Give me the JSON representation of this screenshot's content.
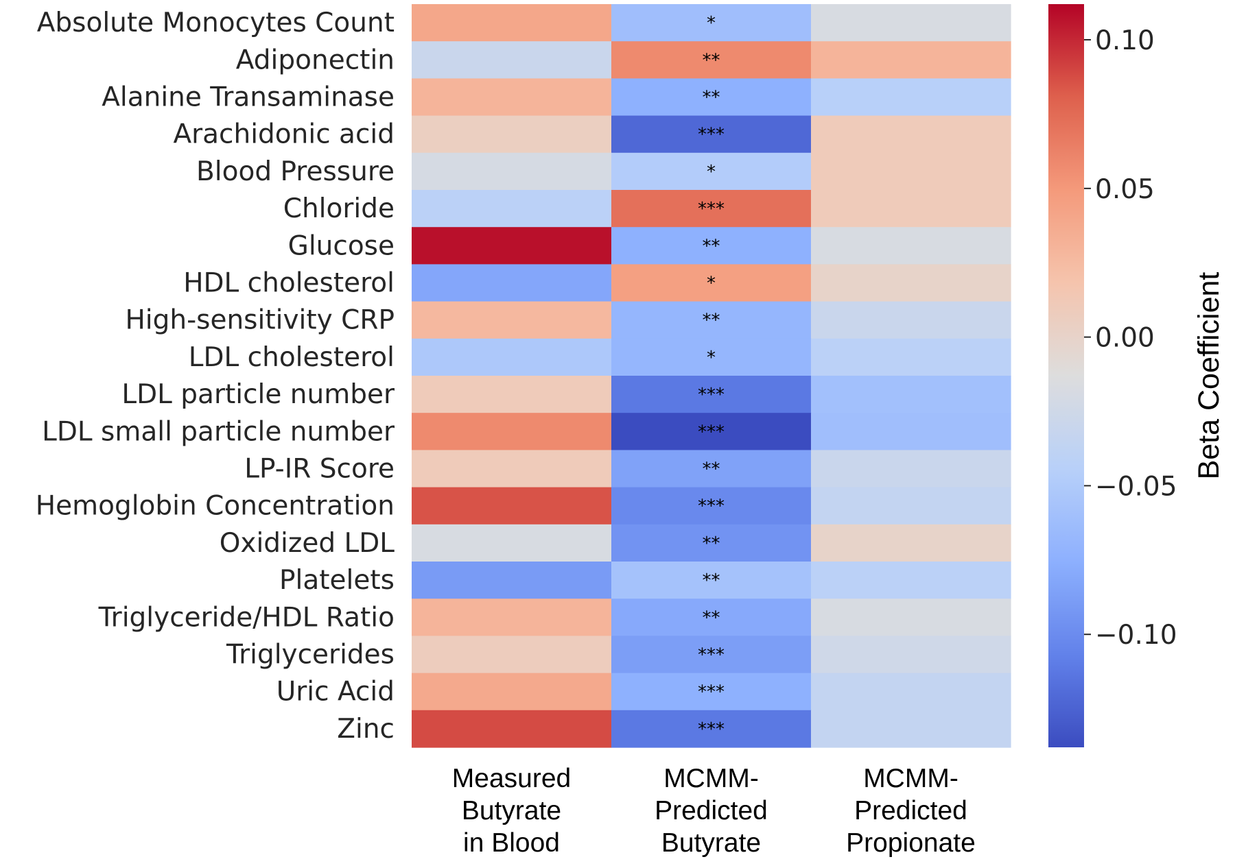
{
  "chart_data": {
    "type": "heatmap",
    "rows": [
      "Absolute Monocytes Count",
      "Adiponectin",
      "Alanine Transaminase",
      "Arachidonic acid",
      "Blood Pressure",
      "Chloride",
      "Glucose",
      "HDL cholesterol",
      "High-sensitivity CRP",
      "LDL cholesterol",
      "LDL particle number",
      "LDL small particle number",
      "LP-IR Score",
      "Hemoglobin Concentration",
      "Oxidized LDL",
      "Platelets",
      "Triglyceride/HDL Ratio",
      "Triglycerides",
      "Uric Acid",
      "Zinc"
    ],
    "columns": [
      [
        "Measured",
        "Butyrate",
        "in Blood"
      ],
      [
        "MCMM-",
        "Predicted",
        "Butyrate"
      ],
      [
        "MCMM-",
        "Predicted",
        "Propionate"
      ]
    ],
    "values": [
      [
        0.04,
        -0.062,
        -0.018
      ],
      [
        -0.03,
        0.058,
        0.03
      ],
      [
        0.03,
        -0.075,
        -0.044
      ],
      [
        0.005,
        -0.122,
        0.01
      ],
      [
        -0.02,
        -0.048,
        0.01
      ],
      [
        -0.042,
        0.072,
        0.01
      ],
      [
        0.108,
        -0.075,
        -0.018
      ],
      [
        -0.082,
        0.045,
        0.0
      ],
      [
        0.027,
        -0.07,
        -0.03
      ],
      [
        -0.052,
        -0.07,
        -0.042
      ],
      [
        0.01,
        -0.112,
        -0.06
      ],
      [
        0.058,
        -0.138,
        -0.062
      ],
      [
        0.01,
        -0.085,
        -0.03
      ],
      [
        0.085,
        -0.102,
        -0.035
      ],
      [
        -0.018,
        -0.095,
        0.0
      ],
      [
        -0.09,
        -0.058,
        -0.042
      ],
      [
        0.03,
        -0.08,
        -0.018
      ],
      [
        0.008,
        -0.088,
        -0.025
      ],
      [
        0.038,
        -0.075,
        -0.035
      ],
      [
        0.088,
        -0.112,
        -0.035
      ]
    ],
    "annotations": [
      [
        "",
        "*",
        ""
      ],
      [
        "",
        "**",
        ""
      ],
      [
        "",
        "**",
        ""
      ],
      [
        "",
        "***",
        ""
      ],
      [
        "",
        "*",
        ""
      ],
      [
        "",
        "***",
        ""
      ],
      [
        "",
        "**",
        ""
      ],
      [
        "",
        "*",
        ""
      ],
      [
        "",
        "**",
        ""
      ],
      [
        "",
        "*",
        ""
      ],
      [
        "",
        "***",
        ""
      ],
      [
        "",
        "***",
        ""
      ],
      [
        "",
        "**",
        ""
      ],
      [
        "",
        "***",
        ""
      ],
      [
        "",
        "**",
        ""
      ],
      [
        "",
        "**",
        ""
      ],
      [
        "",
        "**",
        ""
      ],
      [
        "",
        "***",
        ""
      ],
      [
        "",
        "***",
        ""
      ],
      [
        "",
        "***",
        ""
      ]
    ],
    "colormap": "coolwarm",
    "vmin": -0.138,
    "vmax": 0.112,
    "colorbar": {
      "label": "Beta Coefficient",
      "ticks": [
        0.1,
        0.05,
        0.0,
        -0.05,
        -0.1
      ],
      "tick_labels": [
        "0.10",
        "0.05",
        "0.00",
        "−0.05",
        "−0.10"
      ]
    }
  }
}
